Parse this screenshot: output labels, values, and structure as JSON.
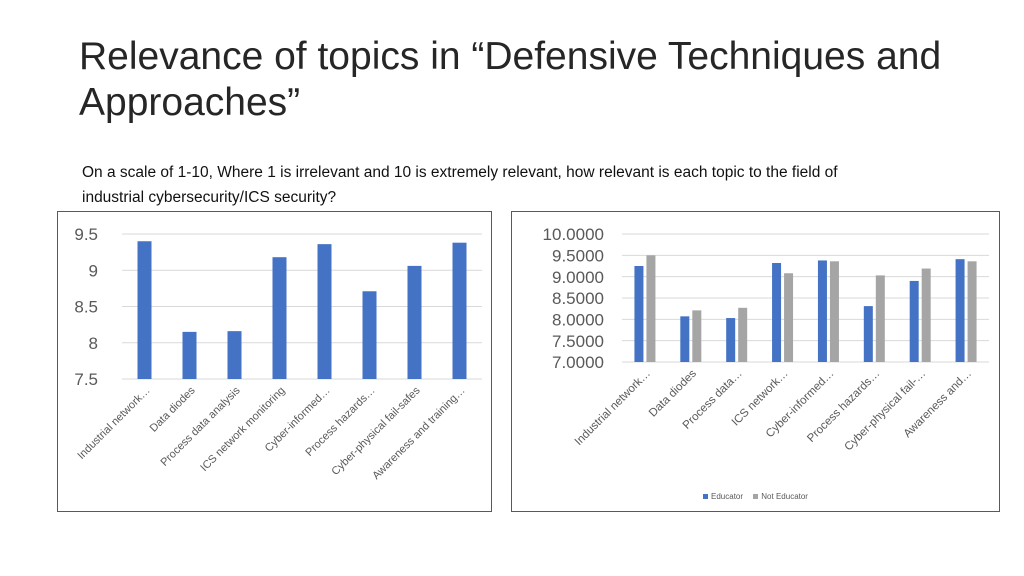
{
  "slide": {
    "title": "Relevance of topics in “Defensive Techniques and Approaches”",
    "subtitle": "On a scale of 1-10, Where 1 is irrelevant and 10 is extremely relevant, how relevant is each topic to the field of industrial cybersecurity/ICS security?"
  },
  "colors": {
    "blue": "#4472C4",
    "gray": "#A5A5A5",
    "grid": "#D9D9D9",
    "text": "#595959"
  },
  "chart_data": [
    {
      "type": "bar",
      "title": "",
      "categories": [
        "Industrial network…",
        "Data diodes",
        "Process data analysis",
        "ICS network monitoring",
        "Cyber-informed…",
        "Process hazards…",
        "Cyber-physical fail-safes",
        "Awareness and training…"
      ],
      "series": [
        {
          "name": "",
          "color": "#4472C4",
          "values": [
            9.4,
            8.15,
            8.16,
            9.18,
            9.36,
            8.71,
            9.06,
            9.38
          ]
        }
      ],
      "ylim": [
        7.5,
        9.5
      ],
      "yticks": [
        "9.5",
        "9",
        "8.5",
        "8",
        "7.5"
      ],
      "ytick_values": [
        9.5,
        9,
        8.5,
        8,
        7.5
      ],
      "grid": true,
      "legend": "none"
    },
    {
      "type": "bar",
      "title": "",
      "categories": [
        "Industrial network…",
        "Data diodes",
        "Process data…",
        "ICS network…",
        "Cyber-informed…",
        "Process hazards…",
        "Cyber-physical fail-…",
        "Awareness and…"
      ],
      "series": [
        {
          "name": "Educator",
          "color": "#4472C4",
          "values": [
            9.25,
            8.07,
            8.03,
            9.32,
            9.38,
            8.31,
            8.9,
            9.41
          ]
        },
        {
          "name": "Not Educator",
          "color": "#A5A5A5",
          "values": [
            9.5,
            8.21,
            8.27,
            9.08,
            9.36,
            9.03,
            9.19,
            9.36
          ]
        }
      ],
      "ylim": [
        7.0,
        10.0
      ],
      "yticks": [
        "10.0000",
        "9.5000",
        "9.0000",
        "8.5000",
        "8.0000",
        "7.5000",
        "7.0000"
      ],
      "ytick_values": [
        10,
        9.5,
        9,
        8.5,
        8,
        7.5,
        7
      ],
      "grid": true,
      "legend": "bottom"
    }
  ]
}
